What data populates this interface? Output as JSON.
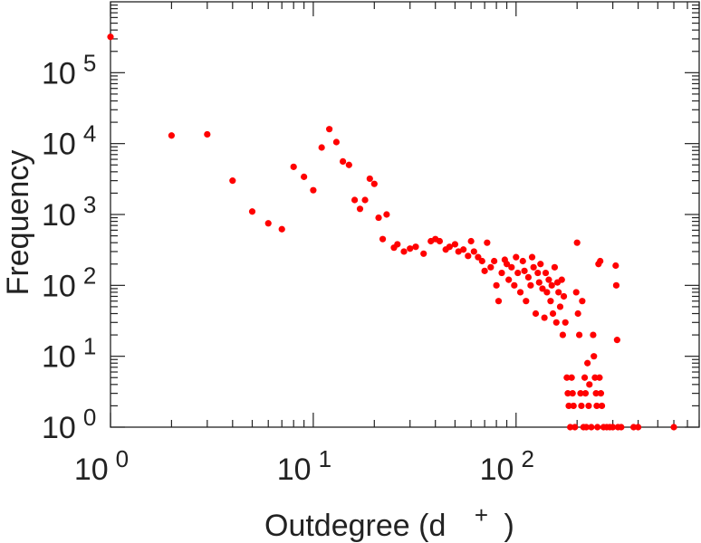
{
  "chart_data": {
    "type": "scatter",
    "title": "",
    "xlabel": "Outdegree (d",
    "xlabel_sup": "+",
    "xlabel_close": ")",
    "ylabel": "Frequency",
    "x_scale": "log",
    "y_scale": "log",
    "xlim": [
      1,
      800
    ],
    "ylim": [
      1,
      1000000
    ],
    "grid": false,
    "legend": "none",
    "marker_color": "#ff0000",
    "x_tick_labels": [
      {
        "base": "10",
        "exp": "0",
        "value": 1
      },
      {
        "base": "10",
        "exp": "1",
        "value": 10
      },
      {
        "base": "10",
        "exp": "2",
        "value": 100
      }
    ],
    "y_tick_labels": [
      {
        "base": "10",
        "exp": "0",
        "value": 1
      },
      {
        "base": "10",
        "exp": "1",
        "value": 10
      },
      {
        "base": "10",
        "exp": "2",
        "value": 100
      },
      {
        "base": "10",
        "exp": "3",
        "value": 1000
      },
      {
        "base": "10",
        "exp": "4",
        "value": 10000
      },
      {
        "base": "10",
        "exp": "5",
        "value": 100000
      }
    ],
    "series": [
      {
        "points": [
          [
            1,
            320000
          ],
          [
            2,
            13000
          ],
          [
            3,
            13500
          ],
          [
            4,
            3000
          ],
          [
            5,
            1100
          ],
          [
            6,
            750
          ],
          [
            7,
            620
          ],
          [
            8,
            4700
          ],
          [
            9,
            3400
          ],
          [
            10,
            2200
          ],
          [
            11,
            8800
          ],
          [
            12,
            16000
          ],
          [
            13,
            10500
          ],
          [
            14,
            5600
          ],
          [
            15,
            5000
          ],
          [
            16,
            1600
          ],
          [
            17,
            1200
          ],
          [
            18,
            1600
          ],
          [
            19,
            3200
          ],
          [
            20,
            2700
          ],
          [
            21,
            900
          ],
          [
            23,
            1000
          ],
          [
            22,
            450
          ],
          [
            25,
            340
          ],
          [
            26,
            380
          ],
          [
            28,
            300
          ],
          [
            30,
            330
          ],
          [
            32,
            350
          ],
          [
            35,
            280
          ],
          [
            38,
            420
          ],
          [
            40,
            450
          ],
          [
            42,
            420
          ],
          [
            45,
            320
          ],
          [
            47,
            350
          ],
          [
            50,
            380
          ],
          [
            52,
            300
          ],
          [
            55,
            320
          ],
          [
            58,
            260
          ],
          [
            60,
            420
          ],
          [
            62,
            300
          ],
          [
            65,
            250
          ],
          [
            68,
            220
          ],
          [
            70,
            160
          ],
          [
            72,
            400
          ],
          [
            75,
            180
          ],
          [
            78,
            220
          ],
          [
            80,
            100
          ],
          [
            82,
            60
          ],
          [
            85,
            150
          ],
          [
            88,
            230
          ],
          [
            90,
            200
          ],
          [
            92,
            120
          ],
          [
            95,
            180
          ],
          [
            98,
            100
          ],
          [
            100,
            250
          ],
          [
            102,
            150
          ],
          [
            105,
            80
          ],
          [
            108,
            220
          ],
          [
            110,
            160
          ],
          [
            112,
            60
          ],
          [
            115,
            130
          ],
          [
            118,
            100
          ],
          [
            120,
            250
          ],
          [
            122,
            180
          ],
          [
            125,
            40
          ],
          [
            128,
            150
          ],
          [
            130,
            110
          ],
          [
            132,
            200
          ],
          [
            135,
            90
          ],
          [
            138,
            35
          ],
          [
            140,
            150
          ],
          [
            142,
            80
          ],
          [
            145,
            120
          ],
          [
            148,
            60
          ],
          [
            150,
            100
          ],
          [
            152,
            40
          ],
          [
            155,
            180
          ],
          [
            158,
            30
          ],
          [
            160,
            110
          ],
          [
            162,
            80
          ],
          [
            165,
            50
          ],
          [
            168,
            120
          ],
          [
            170,
            20
          ],
          [
            172,
            70
          ],
          [
            175,
            30
          ],
          [
            178,
            5
          ],
          [
            180,
            3
          ],
          [
            182,
            2
          ],
          [
            185,
            1
          ],
          [
            188,
            5
          ],
          [
            190,
            3
          ],
          [
            192,
            2
          ],
          [
            195,
            1
          ],
          [
            198,
            80
          ],
          [
            200,
            400
          ],
          [
            202,
            40
          ],
          [
            205,
            20
          ],
          [
            208,
            3
          ],
          [
            210,
            2
          ],
          [
            212,
            60
          ],
          [
            215,
            1
          ],
          [
            218,
            5
          ],
          [
            220,
            3
          ],
          [
            222,
            1
          ],
          [
            225,
            8
          ],
          [
            228,
            2
          ],
          [
            230,
            4
          ],
          [
            235,
            1
          ],
          [
            240,
            20
          ],
          [
            242,
            10
          ],
          [
            245,
            5
          ],
          [
            248,
            3
          ],
          [
            250,
            2
          ],
          [
            252,
            1
          ],
          [
            255,
            200
          ],
          [
            258,
            5
          ],
          [
            260,
            220
          ],
          [
            262,
            3
          ],
          [
            265,
            2
          ],
          [
            270,
            1
          ],
          [
            280,
            1
          ],
          [
            290,
            1
          ],
          [
            300,
            1
          ],
          [
            310,
            190
          ],
          [
            312,
            100
          ],
          [
            315,
            17
          ],
          [
            318,
            1
          ],
          [
            330,
            1
          ],
          [
            380,
            1
          ],
          [
            400,
            1
          ],
          [
            600,
            1
          ]
        ]
      }
    ]
  }
}
